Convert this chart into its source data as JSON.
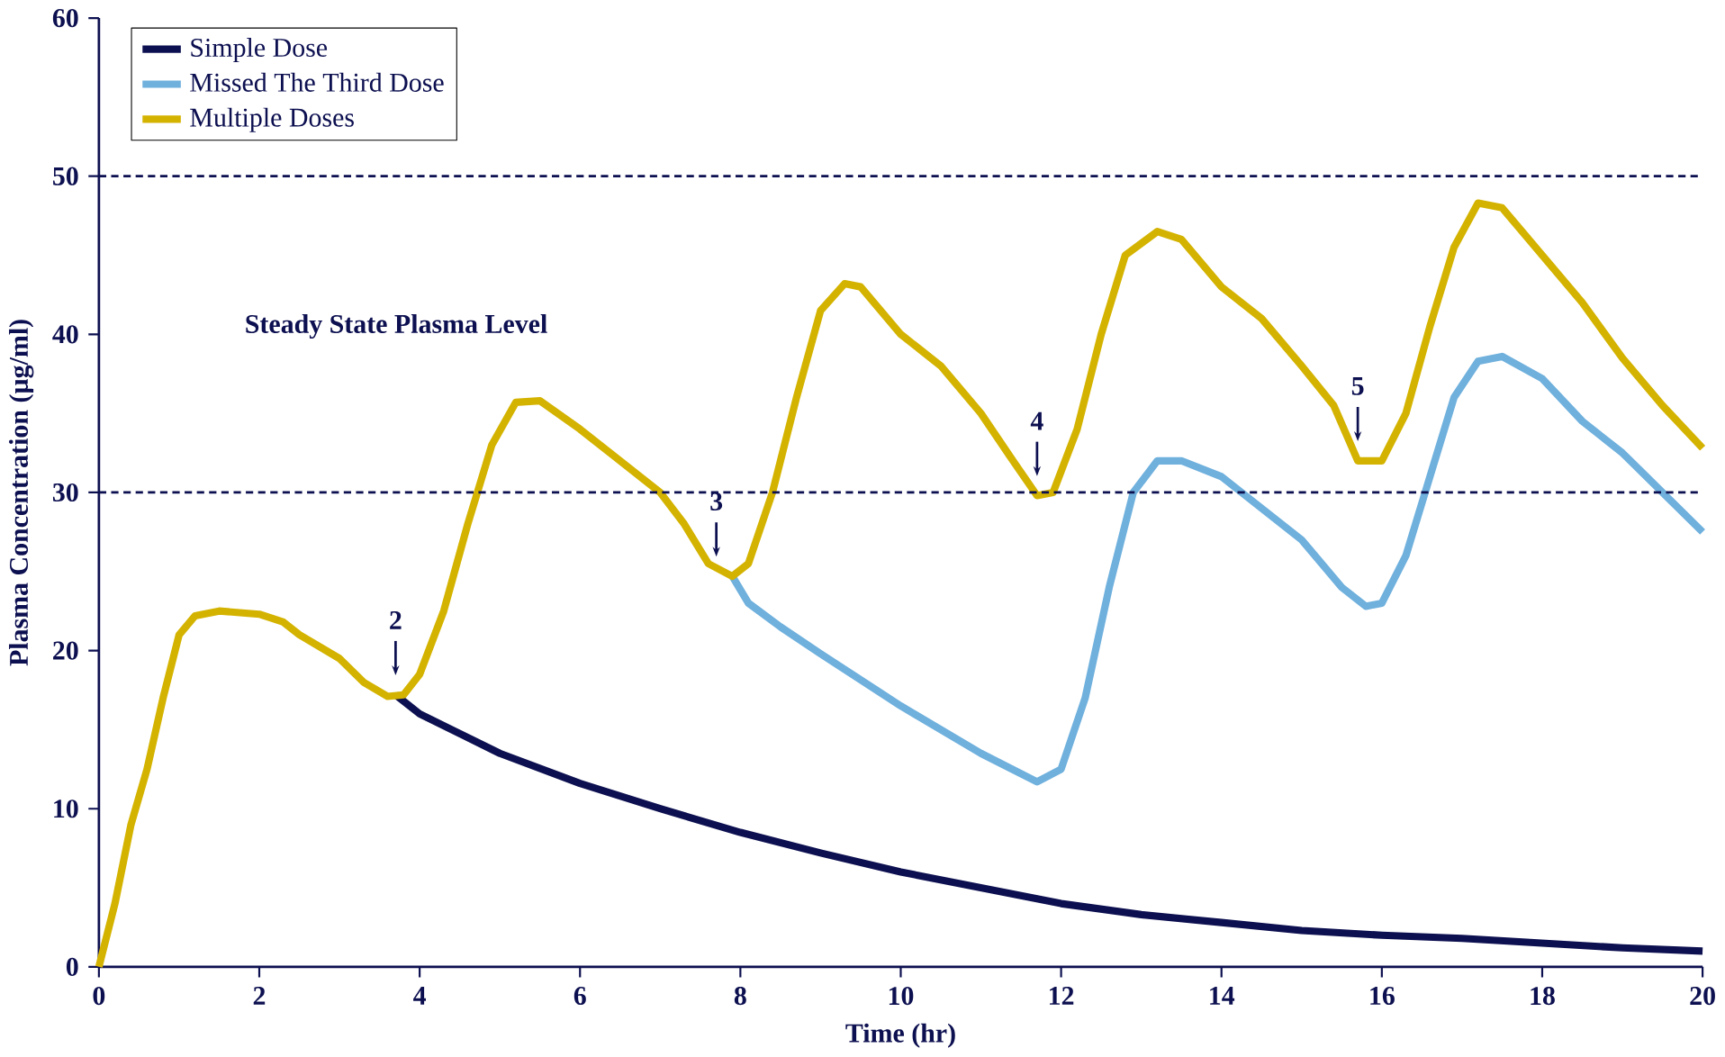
{
  "chart_data": {
    "type": "line",
    "xlabel": "Time (hr)",
    "ylabel": "Plasma Concentration (µg/ml)",
    "xlim": [
      0,
      20
    ],
    "xticks": [
      0,
      2,
      4,
      6,
      8,
      10,
      12,
      14,
      16,
      18,
      20
    ],
    "ylim": [
      0,
      60
    ],
    "yticks": [
      0,
      10,
      20,
      30,
      40,
      50,
      60
    ],
    "grid": false,
    "legend": "top left",
    "marker": "none",
    "line_style": "solid",
    "series": [
      {
        "name": "Simple Dose",
        "color": "#0d1050",
        "x": [
          3.7,
          4,
          5,
          6,
          7,
          8,
          9,
          10,
          11,
          12,
          13,
          14,
          15,
          16,
          17,
          18,
          19,
          20
        ],
        "values": [
          17.2,
          16,
          13.5,
          11.6,
          10,
          8.5,
          7.2,
          6,
          5,
          4,
          3.3,
          2.8,
          2.3,
          2,
          1.8,
          1.5,
          1.2,
          1
        ]
      },
      {
        "name": "Missed The Third Dose",
        "color": "#6fb0dd",
        "x": [
          7.9,
          8.1,
          8.5,
          9,
          10,
          11,
          11.7,
          12,
          12.3,
          12.6,
          12.9,
          13.2,
          13.5,
          14,
          14.5,
          15,
          15.5,
          15.8,
          16,
          16.3,
          16.6,
          16.9,
          17.2,
          17.5,
          18,
          18.5,
          19,
          19.5,
          20
        ],
        "values": [
          24.7,
          23,
          21.5,
          19.8,
          16.5,
          13.5,
          11.7,
          12.5,
          17,
          24,
          30,
          32,
          32,
          31,
          29,
          27,
          24,
          22.8,
          23,
          26,
          31,
          36,
          38.3,
          38.6,
          37.2,
          34.5,
          32.5,
          30,
          27.5
        ]
      },
      {
        "name": "Multiple Doses",
        "color": "#d4b300",
        "x": [
          0,
          0.2,
          0.4,
          0.6,
          0.8,
          1,
          1.2,
          1.5,
          2,
          2.3,
          2.5,
          3,
          3.3,
          3.6,
          3.8,
          4,
          4.3,
          4.6,
          4.9,
          5.2,
          5.5,
          6,
          6.5,
          7,
          7.3,
          7.6,
          7.9,
          8.1,
          8.4,
          8.7,
          9,
          9.3,
          9.5,
          10,
          10.5,
          11,
          11.4,
          11.7,
          11.9,
          12.2,
          12.5,
          12.8,
          13.2,
          13.5,
          14,
          14.5,
          15,
          15.4,
          15.7,
          16,
          16.3,
          16.6,
          16.9,
          17.2,
          17.5,
          18,
          18.5,
          19,
          19.5,
          20
        ],
        "values": [
          0,
          4,
          9,
          12.5,
          17,
          21,
          22.2,
          22.5,
          22.3,
          21.8,
          21,
          19.5,
          18,
          17.1,
          17.2,
          18.5,
          22.5,
          28,
          33,
          35.7,
          35.8,
          34,
          32,
          30,
          28,
          25.5,
          24.7,
          25.5,
          30,
          36,
          41.5,
          43.2,
          43,
          40,
          38,
          35,
          32,
          29.8,
          30,
          34,
          40,
          45,
          46.5,
          46,
          43,
          41,
          38,
          35.5,
          32,
          32,
          35,
          40.5,
          45.5,
          48.3,
          48,
          45,
          42,
          38.5,
          35.5,
          32.8
        ]
      }
    ],
    "ref_lines": [
      {
        "axis": "y",
        "value": 50,
        "color": "#0d1050",
        "line_style": "dashed"
      },
      {
        "axis": "y",
        "value": 30,
        "color": "#0d1050",
        "line_style": "dashed"
      }
    ],
    "annotations": [
      "Steady State Plasma Level",
      {
        "text": "2",
        "x": 3.7,
        "y": 17.2
      },
      {
        "text": "3",
        "x": 7.7,
        "y": 24.7
      },
      {
        "text": "4",
        "x": 11.7,
        "y": 29.8
      },
      {
        "text": "5",
        "x": 15.7,
        "y": 32
      }
    ]
  }
}
